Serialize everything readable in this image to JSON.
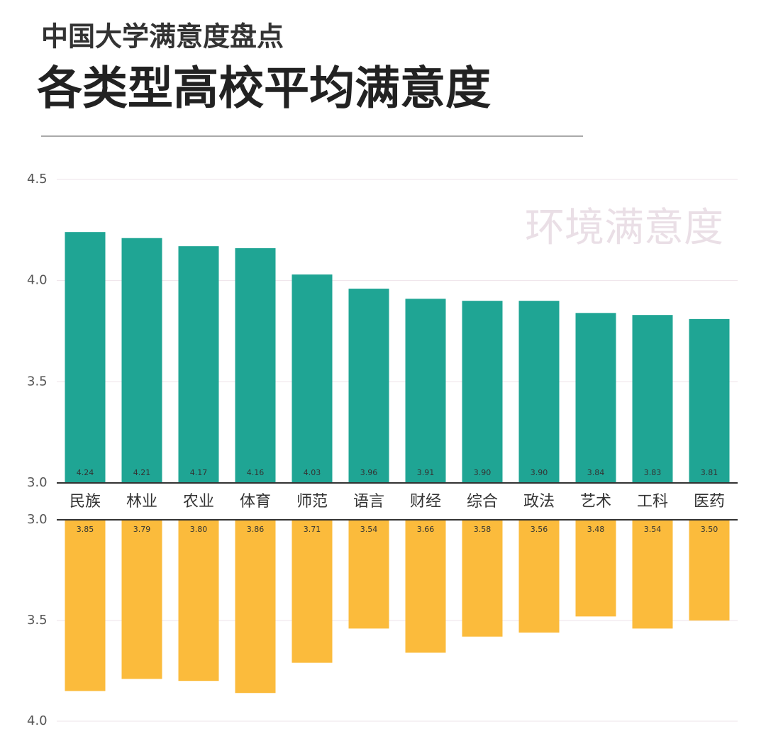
{
  "chart_data": [
    {
      "type": "bar",
      "subtitle": "中国大学满意度盘点",
      "title": "各类型高校平均满意度",
      "annotation": "环境满意度",
      "categories": [
        "民族",
        "林业",
        "农业",
        "体育",
        "师范",
        "语言",
        "财经",
        "综合",
        "政法",
        "艺术",
        "工科",
        "医药"
      ],
      "values": [
        4.24,
        4.21,
        4.17,
        4.16,
        4.03,
        3.96,
        3.91,
        3.9,
        3.9,
        3.84,
        3.83,
        3.81
      ],
      "value_labels": [
        "4.24",
        "4.21",
        "4.17",
        "4.16",
        "4.03",
        "3.96",
        "3.91",
        "3.90",
        "3.90",
        "3.84",
        "3.83",
        "3.81"
      ],
      "color": "#1fa594",
      "ylim": [
        3.0,
        4.5
      ],
      "yticks": [
        {
          "value": 3.0,
          "label": "3.0"
        },
        3.5,
        {
          "value": 4.0,
          "label": "4.0"
        },
        4.5
      ],
      "grid": true
    },
    {
      "type": "bar",
      "inverted": true,
      "values": [
        3.85,
        3.79,
        3.8,
        3.86,
        3.71,
        3.54,
        3.66,
        3.58,
        3.56,
        3.48,
        3.54,
        3.5
      ],
      "value_labels": [
        "3.85",
        "3.79",
        "3.80",
        "3.86",
        "3.71",
        "3.54",
        "3.66",
        "3.58",
        "3.56",
        "3.48",
        "3.54",
        "3.50"
      ],
      "color": "#fbbb3c",
      "ylim": [
        3.0,
        4.0
      ],
      "yticks": [
        {
          "value": 3.0,
          "label": "3.0"
        },
        3.5,
        {
          "value": 4.0,
          "label": "4.0"
        }
      ],
      "grid": true
    }
  ]
}
